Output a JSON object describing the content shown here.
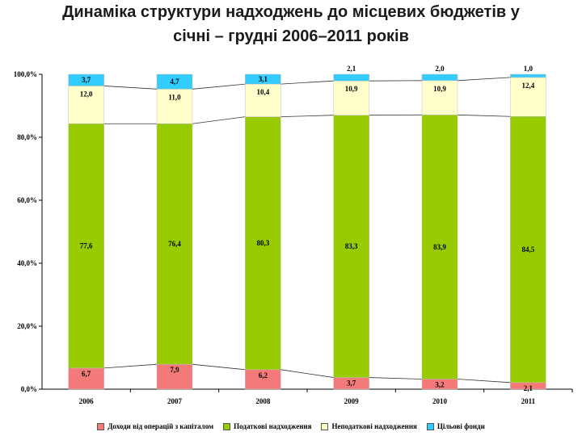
{
  "header": {
    "title_line1": "Динаміка структури надходжень до місцевих бюджетів у",
    "title_line2": "січні – грудні 2006–2011 років"
  },
  "chart_data": {
    "type": "bar",
    "stacked": true,
    "percent_stacked": true,
    "categories": [
      "2006",
      "2007",
      "2008",
      "2009",
      "2010",
      "2011"
    ],
    "series": [
      {
        "name": "Доходи від операцій з капіталом",
        "color": "#f47a7a",
        "values": [
          6.7,
          7.9,
          6.2,
          3.7,
          3.2,
          2.1
        ],
        "labels": [
          "6,7",
          "7,9",
          "6,2",
          "3,7",
          "3,2",
          "2,1"
        ]
      },
      {
        "name": "Податкові надходження",
        "color": "#99cc00",
        "values": [
          77.6,
          76.4,
          80.3,
          83.3,
          83.9,
          84.5
        ],
        "labels": [
          "77,6",
          "76,4",
          "80,3",
          "83,3",
          "83,9",
          "84,5"
        ]
      },
      {
        "name": "Неподаткові надходження",
        "color": "#ffffcc",
        "values": [
          12.0,
          11.0,
          10.4,
          10.9,
          10.9,
          12.4
        ],
        "labels": [
          "12,0",
          "11,0",
          "10,4",
          "10,9",
          "10,9",
          "12,4"
        ]
      },
      {
        "name": "Цільові фонди",
        "color": "#33ccff",
        "values": [
          3.7,
          4.7,
          3.1,
          2.1,
          2.0,
          1.0
        ],
        "labels": [
          "3,7",
          "4,7",
          "3,1",
          "2,1",
          "2,0",
          "1,0"
        ]
      }
    ],
    "y_ticks": [
      "0,0%",
      "20,0%",
      "40,0%",
      "60,0%",
      "80,0%",
      "100,0%"
    ],
    "ylim": [
      0,
      100
    ],
    "series_lines": true,
    "grid": false,
    "legend_position": "bottom"
  }
}
